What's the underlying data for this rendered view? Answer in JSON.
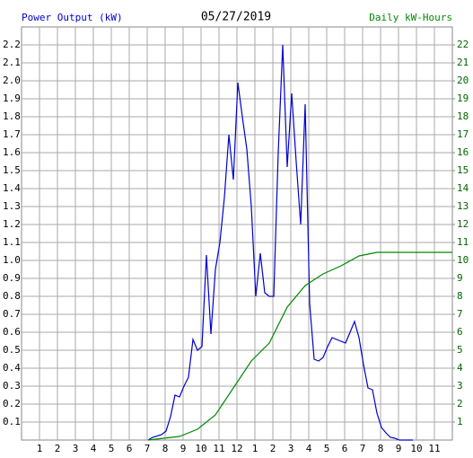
{
  "chart_data": {
    "type": "line",
    "title": "05/27/2019",
    "y_label": "Power Output (kW)",
    "y2_label": "Daily kW-Hours",
    "xlim": [
      0,
      24
    ],
    "xticks": [
      1,
      2,
      3,
      4,
      5,
      6,
      7,
      8,
      9,
      10,
      11,
      12,
      {
        "value": 13,
        "label": "1"
      },
      {
        "value": 14,
        "label": "2"
      },
      {
        "value": 15,
        "label": "3"
      },
      {
        "value": 16,
        "label": "4"
      },
      {
        "value": 17,
        "label": "5"
      },
      {
        "value": 18,
        "label": "6"
      },
      {
        "value": 19,
        "label": "7"
      },
      {
        "value": 20,
        "label": "8"
      },
      {
        "value": 21,
        "label": "9"
      },
      {
        "value": 22,
        "label": "10"
      },
      {
        "value": 23,
        "label": "11"
      }
    ],
    "ylim": [
      0,
      2.3
    ],
    "yticks": [
      0.1,
      0.2,
      0.3,
      0.4,
      0.5,
      0.6,
      0.7,
      0.8,
      0.9,
      {
        "value": 1,
        "label": "1.0"
      },
      1.1,
      1.2,
      1.3,
      1.4,
      1.5,
      1.6,
      1.7,
      1.8,
      1.9,
      {
        "value": 2,
        "label": "2.0"
      },
      2.1,
      2.2
    ],
    "y2lim": [
      0,
      23
    ],
    "y2ticks": [
      1,
      2,
      3,
      4,
      5,
      6,
      7,
      8,
      9,
      10,
      11,
      12,
      13,
      14,
      15,
      16,
      17,
      18,
      19,
      20,
      21,
      22
    ],
    "grid": true,
    "series": [
      {
        "name": "Power Output",
        "color": "#0000cc",
        "x": [
          7.05,
          7.3,
          7.8,
          8.05,
          8.3,
          8.55,
          8.8,
          9.05,
          9.3,
          9.55,
          9.8,
          10.05,
          10.3,
          10.55,
          10.8,
          11.05,
          11.3,
          11.55,
          11.8,
          12.05,
          12.3,
          12.55,
          12.8,
          13.05,
          13.3,
          13.55,
          13.8,
          14.05,
          14.3,
          14.55,
          14.8,
          15.05,
          15.3,
          15.55,
          15.8,
          16.05,
          16.3,
          16.55,
          16.8,
          17.05,
          17.3,
          17.55,
          17.8,
          18.05,
          18.3,
          18.55,
          18.8,
          19.05,
          19.3,
          19.55,
          19.8,
          20.05,
          20.3,
          20.55,
          20.8,
          21.05,
          21.8
        ],
        "values": [
          0,
          0.015,
          0.03,
          0.05,
          0.13,
          0.25,
          0.24,
          0.3,
          0.35,
          0.56,
          0.5,
          0.52,
          1.03,
          0.59,
          0.95,
          1.1,
          1.35,
          1.7,
          1.45,
          1.99,
          1.8,
          1.62,
          1.3,
          0.8,
          1.04,
          0.82,
          0.8,
          0.8,
          1.6,
          2.2,
          1.52,
          1.93,
          1.55,
          1.2,
          1.87,
          0.76,
          0.45,
          0.44,
          0.46,
          0.52,
          0.57,
          0.56,
          0.55,
          0.54,
          0.6,
          0.66,
          0.57,
          0.42,
          0.29,
          0.28,
          0.15,
          0.07,
          0.04,
          0.015,
          0.01,
          0,
          0
        ]
      },
      {
        "name": "Daily kW-Hours",
        "color": "#008800",
        "axis": "y2",
        "x": [
          7.05,
          8.8,
          9.8,
          10.8,
          11.8,
          12.8,
          13.8,
          14.8,
          15.8,
          16.8,
          17.8,
          18.8,
          19.8,
          24
        ],
        "values": [
          0,
          0.2,
          0.6,
          1.4,
          2.9,
          4.4,
          5.4,
          7.4,
          8.6,
          9.25,
          9.7,
          10.25,
          10.45,
          10.45
        ]
      }
    ]
  }
}
